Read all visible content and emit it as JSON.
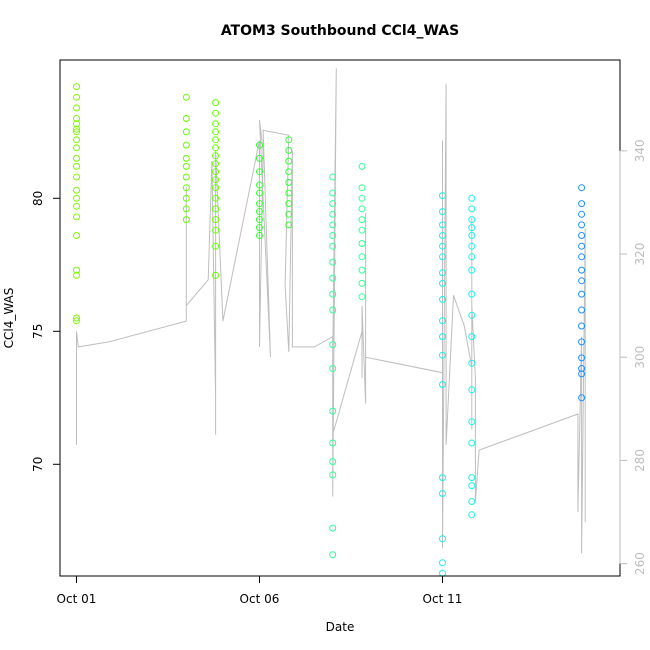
{
  "chart_data": {
    "type": "scatter",
    "title": "ATOM3 Southbound CCl4_WAS",
    "xlabel": "Date",
    "ylabel": "CCl4_WAS",
    "x_ticks": [
      {
        "label": "Oct 01",
        "day": 1
      },
      {
        "label": "Oct 06",
        "day": 6
      },
      {
        "label": "Oct 11",
        "day": 11
      }
    ],
    "y_ticks": [
      70,
      75,
      80
    ],
    "y_right_ticks": [
      260,
      280,
      300,
      320,
      340
    ],
    "xlim_days": [
      0.55,
      15.85
    ],
    "ylim": [
      65.8,
      85.2
    ],
    "ylim_right": [
      257.6,
      357.6
    ],
    "grid": false,
    "series": [
      {
        "color": "#7CFC00",
        "points": [
          [
            1.0,
            84.2
          ],
          [
            1.0,
            83.8
          ],
          [
            1.0,
            83.4
          ],
          [
            1.0,
            83.0
          ],
          [
            1.0,
            82.8
          ],
          [
            1.0,
            82.6
          ],
          [
            1.0,
            82.5
          ],
          [
            1.0,
            82.2
          ],
          [
            1.0,
            81.9
          ],
          [
            1.0,
            81.5
          ],
          [
            1.0,
            81.2
          ],
          [
            1.0,
            80.8
          ],
          [
            1.0,
            80.3
          ],
          [
            1.0,
            80.0
          ],
          [
            1.0,
            79.7
          ],
          [
            1.0,
            79.3
          ],
          [
            1.0,
            78.6
          ],
          [
            1.0,
            77.3
          ],
          [
            1.0,
            77.1
          ],
          [
            1.0,
            75.5
          ],
          [
            1.0,
            75.4
          ]
        ]
      },
      {
        "color": "#66FF00",
        "points": [
          [
            4.0,
            83.8
          ],
          [
            4.0,
            83.0
          ],
          [
            4.0,
            82.5
          ],
          [
            4.0,
            82.0
          ],
          [
            4.0,
            81.5
          ],
          [
            4.0,
            81.2
          ],
          [
            4.0,
            80.8
          ],
          [
            4.0,
            80.4
          ],
          [
            4.0,
            80.0
          ],
          [
            4.0,
            79.6
          ],
          [
            4.0,
            79.2
          ],
          [
            4.8,
            83.6
          ],
          [
            4.8,
            83.2
          ],
          [
            4.8,
            82.8
          ],
          [
            4.8,
            82.5
          ],
          [
            4.8,
            82.2
          ],
          [
            4.8,
            81.9
          ],
          [
            4.8,
            81.6
          ],
          [
            4.8,
            81.3
          ],
          [
            4.8,
            81.0
          ],
          [
            4.8,
            80.7
          ],
          [
            4.8,
            80.4
          ],
          [
            4.8,
            80.0
          ],
          [
            4.8,
            79.6
          ],
          [
            4.8,
            79.2
          ],
          [
            4.8,
            78.8
          ],
          [
            4.8,
            78.2
          ],
          [
            4.8,
            77.1
          ]
        ]
      },
      {
        "color": "#33FF33",
        "points": [
          [
            6.0,
            82.0
          ],
          [
            6.0,
            81.5
          ],
          [
            6.0,
            81.0
          ],
          [
            6.0,
            80.5
          ],
          [
            6.0,
            80.2
          ],
          [
            6.0,
            79.8
          ],
          [
            6.0,
            79.5
          ],
          [
            6.0,
            79.2
          ],
          [
            6.0,
            78.9
          ],
          [
            6.0,
            78.6
          ],
          [
            6.8,
            82.2
          ],
          [
            6.8,
            81.8
          ],
          [
            6.8,
            81.4
          ],
          [
            6.8,
            81.0
          ],
          [
            6.8,
            80.6
          ],
          [
            6.8,
            80.2
          ],
          [
            6.8,
            79.8
          ],
          [
            6.8,
            79.4
          ],
          [
            6.8,
            79.0
          ]
        ]
      },
      {
        "color": "#33FF99",
        "points": [
          [
            8.0,
            80.8
          ],
          [
            8.0,
            80.2
          ],
          [
            8.0,
            79.8
          ],
          [
            8.0,
            79.4
          ],
          [
            8.0,
            79.0
          ],
          [
            8.0,
            78.6
          ],
          [
            8.0,
            78.2
          ],
          [
            8.0,
            77.6
          ],
          [
            8.0,
            77.0
          ],
          [
            8.0,
            76.4
          ],
          [
            8.0,
            75.8
          ],
          [
            8.0,
            74.5
          ],
          [
            8.0,
            73.6
          ],
          [
            8.0,
            72.0
          ],
          [
            8.0,
            70.8
          ],
          [
            8.0,
            70.1
          ],
          [
            8.0,
            69.6
          ],
          [
            8.0,
            67.6
          ],
          [
            8.0,
            66.6
          ],
          [
            8.8,
            81.2
          ],
          [
            8.8,
            80.4
          ],
          [
            8.8,
            80.0
          ],
          [
            8.8,
            79.6
          ],
          [
            8.8,
            79.2
          ],
          [
            8.8,
            78.8
          ],
          [
            8.8,
            78.3
          ],
          [
            8.8,
            77.8
          ],
          [
            8.8,
            77.3
          ],
          [
            8.8,
            76.8
          ],
          [
            8.8,
            76.3
          ]
        ]
      },
      {
        "color": "#1AF2E6",
        "points": [
          [
            11.0,
            80.1
          ],
          [
            11.0,
            79.5
          ],
          [
            11.0,
            79.0
          ],
          [
            11.0,
            78.6
          ],
          [
            11.0,
            78.2
          ],
          [
            11.0,
            77.8
          ],
          [
            11.0,
            77.2
          ],
          [
            11.0,
            76.8
          ],
          [
            11.0,
            76.2
          ],
          [
            11.0,
            75.4
          ],
          [
            11.0,
            74.8
          ],
          [
            11.0,
            74.1
          ],
          [
            11.0,
            73.0
          ],
          [
            11.0,
            69.5
          ],
          [
            11.0,
            68.9
          ],
          [
            11.0,
            67.2
          ],
          [
            11.0,
            66.3
          ],
          [
            11.0,
            65.9
          ],
          [
            11.8,
            80.0
          ],
          [
            11.8,
            79.6
          ],
          [
            11.8,
            79.2
          ],
          [
            11.8,
            78.9
          ],
          [
            11.8,
            78.6
          ],
          [
            11.8,
            78.2
          ],
          [
            11.8,
            77.8
          ],
          [
            11.8,
            77.3
          ],
          [
            11.8,
            76.4
          ],
          [
            11.8,
            75.6
          ],
          [
            11.8,
            74.8
          ],
          [
            11.8,
            73.8
          ],
          [
            11.8,
            72.8
          ],
          [
            11.8,
            71.6
          ],
          [
            11.8,
            70.8
          ],
          [
            11.8,
            69.5
          ],
          [
            11.8,
            69.2
          ],
          [
            11.8,
            68.6
          ],
          [
            11.8,
            68.1
          ]
        ]
      },
      {
        "color": "#1E90FF",
        "points": [
          [
            14.8,
            80.4
          ],
          [
            14.8,
            79.8
          ],
          [
            14.8,
            79.4
          ],
          [
            14.8,
            79.0
          ],
          [
            14.8,
            78.6
          ],
          [
            14.8,
            78.2
          ],
          [
            14.8,
            77.8
          ],
          [
            14.8,
            77.3
          ],
          [
            14.8,
            76.9
          ],
          [
            14.8,
            76.4
          ],
          [
            14.8,
            75.8
          ],
          [
            14.8,
            75.2
          ],
          [
            14.8,
            74.6
          ],
          [
            14.8,
            74.0
          ],
          [
            14.8,
            73.6
          ],
          [
            14.8,
            73.4
          ],
          [
            14.8,
            72.5
          ]
        ]
      }
    ],
    "line_series": {
      "color": "#bebebe",
      "axis": "right",
      "points": [
        [
          1.0,
          301
        ],
        [
          1.0,
          283
        ],
        [
          1.0,
          305
        ],
        [
          1.05,
          302
        ],
        [
          1.9,
          303
        ],
        [
          4.0,
          307
        ],
        [
          4.0,
          333
        ],
        [
          4.0,
          310
        ],
        [
          4.6,
          315
        ],
        [
          4.7,
          338
        ],
        [
          4.8,
          292
        ],
        [
          4.8,
          326
        ],
        [
          4.8,
          285
        ],
        [
          4.8,
          340
        ],
        [
          5.0,
          307
        ],
        [
          6.0,
          342
        ],
        [
          6.0,
          302
        ],
        [
          6.1,
          340
        ],
        [
          6.0,
          346
        ],
        [
          6.3,
          300
        ],
        [
          6.1,
          344
        ],
        [
          6.8,
          343
        ],
        [
          6.7,
          314
        ],
        [
          6.8,
          301
        ],
        [
          6.9,
          340
        ],
        [
          6.9,
          302
        ],
        [
          7.5,
          302
        ],
        [
          8.0,
          304
        ],
        [
          8.0,
          298
        ],
        [
          8.0,
          273
        ],
        [
          8.1,
          356
        ],
        [
          8.0,
          300
        ],
        [
          8.0,
          285
        ],
        [
          8.8,
          305
        ],
        [
          8.8,
          296
        ],
        [
          8.8,
          302
        ],
        [
          8.8,
          310
        ],
        [
          8.9,
          291
        ],
        [
          8.9,
          328
        ],
        [
          8.9,
          300
        ],
        [
          11.0,
          297
        ],
        [
          11.0,
          293
        ],
        [
          11.0,
          318
        ],
        [
          11.0,
          342
        ],
        [
          11.0,
          263
        ],
        [
          11.1,
          353
        ],
        [
          11.1,
          283
        ],
        [
          11.3,
          312
        ],
        [
          11.6,
          306
        ],
        [
          11.8,
          298
        ],
        [
          11.8,
          286
        ],
        [
          11.8,
          293
        ],
        [
          11.8,
          327
        ],
        [
          11.8,
          310
        ],
        [
          11.9,
          296
        ],
        [
          11.9,
          272
        ],
        [
          12.0,
          282
        ],
        [
          14.7,
          289
        ],
        [
          14.7,
          270
        ],
        [
          14.8,
          304
        ],
        [
          14.8,
          262
        ],
        [
          14.9,
          325
        ],
        [
          14.9,
          268
        ],
        [
          14.9,
          290
        ]
      ]
    }
  }
}
